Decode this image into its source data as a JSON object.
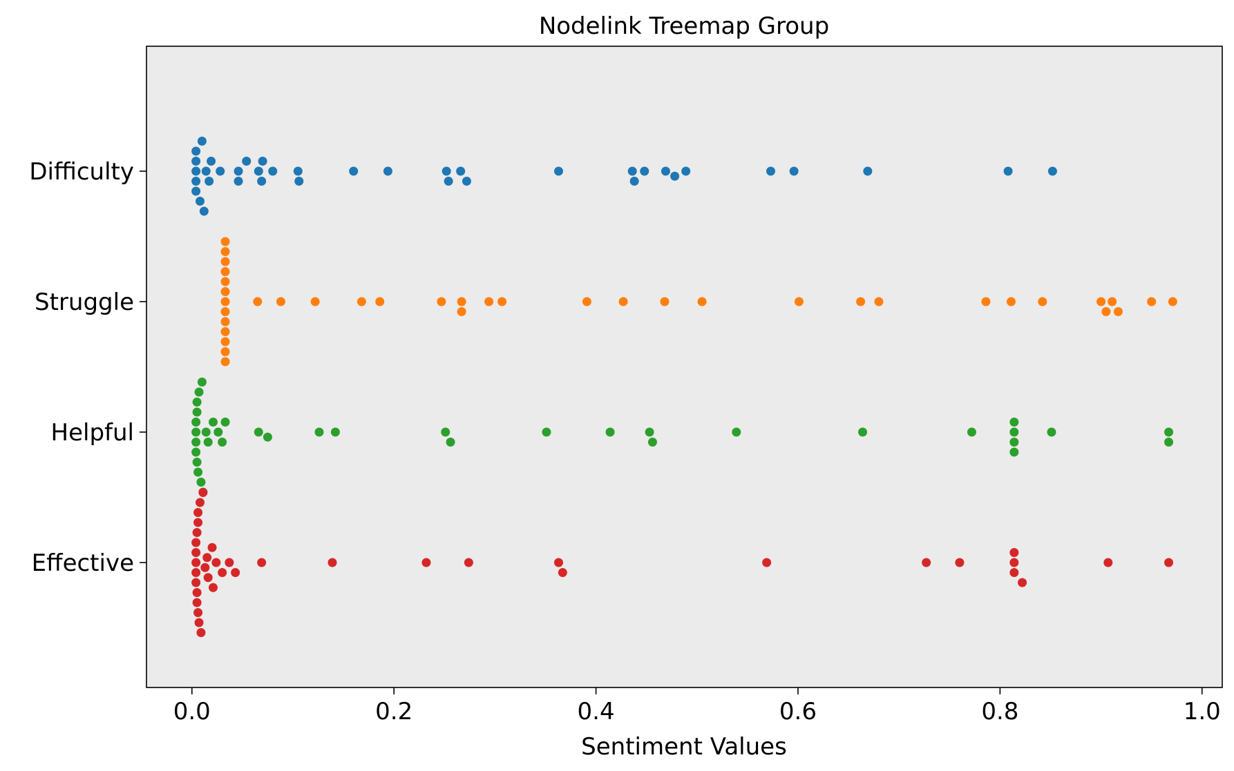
{
  "chart_data": {
    "type": "scatter",
    "subtype": "swarm",
    "title": "Nodelink Treemap Group",
    "xlabel": "Sentiment Values",
    "ylabel": "",
    "xlim": [
      -0.045,
      1.02
    ],
    "x_ticks": [
      0.0,
      0.2,
      0.4,
      0.6,
      0.8,
      1.0
    ],
    "x_tick_labels": [
      "0.0",
      "0.2",
      "0.4",
      "0.6",
      "0.8",
      "1.0"
    ],
    "categories": [
      "Difficulty",
      "Struggle",
      "Helpful",
      "Effective"
    ],
    "grid": false,
    "background": "#ebebeb",
    "series": [
      {
        "category": "Difficulty",
        "color": "#1f77b4",
        "values": [
          0.004,
          0.004,
          0.004,
          0.004,
          0.004,
          0.008,
          0.01,
          0.012,
          0.014,
          0.017,
          0.019,
          0.028,
          0.046,
          0.046,
          0.054,
          0.066,
          0.069,
          0.07,
          0.08,
          0.105,
          0.106,
          0.16,
          0.194,
          0.252,
          0.254,
          0.266,
          0.272,
          0.363,
          0.436,
          0.438,
          0.448,
          0.469,
          0.478,
          0.489,
          0.573,
          0.596,
          0.669,
          0.808,
          0.852
        ]
      },
      {
        "category": "Struggle",
        "color": "#ff7f0e",
        "values": [
          0.033,
          0.033,
          0.033,
          0.033,
          0.033,
          0.033,
          0.033,
          0.033,
          0.033,
          0.033,
          0.033,
          0.033,
          0.033,
          0.065,
          0.088,
          0.122,
          0.168,
          0.186,
          0.247,
          0.267,
          0.267,
          0.294,
          0.307,
          0.391,
          0.427,
          0.468,
          0.505,
          0.601,
          0.662,
          0.68,
          0.786,
          0.811,
          0.842,
          0.9,
          0.905,
          0.911,
          0.917,
          0.95,
          0.971
        ]
      },
      {
        "category": "Helpful",
        "color": "#2ca02c",
        "values": [
          0.004,
          0.004,
          0.004,
          0.004,
          0.005,
          0.005,
          0.005,
          0.006,
          0.007,
          0.009,
          0.01,
          0.011,
          0.014,
          0.016,
          0.021,
          0.026,
          0.03,
          0.033,
          0.066,
          0.075,
          0.126,
          0.142,
          0.251,
          0.256,
          0.351,
          0.414,
          0.453,
          0.456,
          0.539,
          0.664,
          0.772,
          0.814,
          0.814,
          0.814,
          0.814,
          0.851,
          0.967,
          0.967
        ]
      },
      {
        "category": "Effective",
        "color": "#d62728",
        "values": [
          0.004,
          0.004,
          0.004,
          0.004,
          0.004,
          0.005,
          0.005,
          0.005,
          0.006,
          0.006,
          0.006,
          0.007,
          0.008,
          0.009,
          0.011,
          0.013,
          0.015,
          0.016,
          0.02,
          0.021,
          0.024,
          0.03,
          0.037,
          0.043,
          0.069,
          0.139,
          0.232,
          0.274,
          0.363,
          0.367,
          0.569,
          0.727,
          0.76,
          0.814,
          0.814,
          0.814,
          0.822,
          0.907,
          0.967
        ]
      }
    ]
  }
}
